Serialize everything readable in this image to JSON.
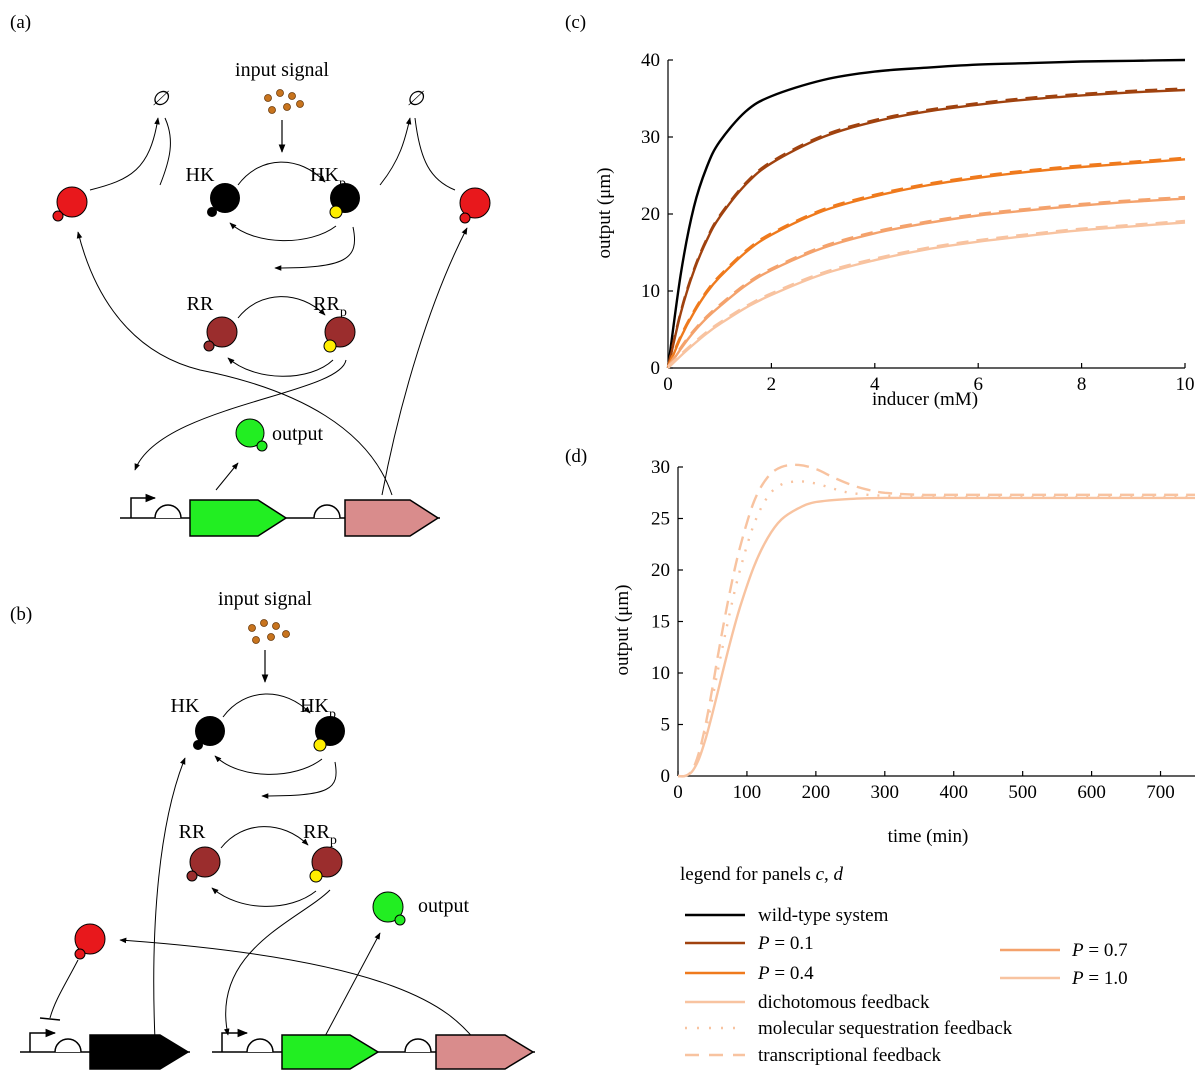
{
  "panel_labels": {
    "a": "(a)",
    "b": "(b)",
    "c": "(c)",
    "d": "(d)"
  },
  "diagram_a": {
    "input": "input signal",
    "empty_left": "∅",
    "empty_right": "∅",
    "hk": "HK",
    "hkp": "HK",
    "p_sub": "p",
    "rr": "RR",
    "rrp": "RR",
    "output": "output"
  },
  "diagram_b": {
    "input": "input signal",
    "hk": "HK",
    "hkp": "HK",
    "p_sub": "p",
    "rr": "RR",
    "rrp": "RR",
    "output": "output"
  },
  "colors": {
    "wild_type": "#000000",
    "p01": "#a0420f",
    "p04": "#ef7a1d",
    "p07": "#f4a26c",
    "p10": "#f8c3a0",
    "red_protein": "#e8181c",
    "hk": "#000000",
    "rr": "#9b2d2d",
    "phospho": "#ffee00",
    "gfp": "#22ee22",
    "pink_gene": "#d98c8c",
    "signal": "#c8741e"
  },
  "chart_data": [
    {
      "type": "line",
      "panel": "c",
      "xlabel": "inducer (mM)",
      "ylabel": "output (μm)",
      "xlim": [
        0,
        10
      ],
      "ylim": [
        0,
        40
      ],
      "xticks": [
        "0",
        "2",
        "4",
        "6",
        "8",
        "10"
      ],
      "yticks": [
        "0",
        "10",
        "20",
        "30",
        "40"
      ],
      "x": [
        0,
        0.25,
        0.5,
        0.75,
        1,
        1.5,
        2,
        3,
        4,
        5,
        6,
        7,
        8,
        9,
        10
      ],
      "series": [
        {
          "name": "wild-type system",
          "color": "#000000",
          "values": [
            0,
            12.3,
            20.9,
            26.1,
            29.4,
            33.3,
            35.3,
            37.4,
            38.5,
            39.0,
            39.4,
            39.6,
            39.8,
            39.9,
            40.0
          ]
        },
        {
          "name": "P = 0.1",
          "color": "#a0420f",
          "values": [
            0,
            7.2,
            12.6,
            16.6,
            19.6,
            23.8,
            26.6,
            30.0,
            32.0,
            33.3,
            34.2,
            34.9,
            35.4,
            35.8,
            36.1
          ]
        },
        {
          "name": "P = 0.4",
          "color": "#ef7a1d",
          "values": [
            0,
            4.0,
            7.2,
            9.8,
            11.8,
            15.0,
            17.3,
            20.4,
            22.3,
            23.7,
            24.7,
            25.5,
            26.1,
            26.6,
            27.1
          ]
        },
        {
          "name": "P = 0.7",
          "color": "#f4a26c",
          "values": [
            0,
            2.5,
            4.7,
            6.5,
            8.0,
            10.7,
            12.7,
            15.6,
            17.5,
            18.8,
            19.8,
            20.5,
            21.1,
            21.6,
            22.0
          ]
        },
        {
          "name": "P = 1.0",
          "color": "#f8c3a0",
          "values": [
            0,
            1.6,
            3.1,
            4.5,
            5.7,
            7.8,
            9.5,
            12.2,
            14.0,
            15.4,
            16.4,
            17.2,
            17.9,
            18.4,
            18.9
          ]
        }
      ]
    },
    {
      "type": "line",
      "panel": "d",
      "xlabel": "time (min)",
      "ylabel": "output (μm)",
      "xlim": [
        0,
        750
      ],
      "ylim": [
        0,
        30
      ],
      "xticks": [
        "0",
        "100",
        "200",
        "300",
        "400",
        "500",
        "600",
        "700"
      ],
      "yticks": [
        "0",
        "5",
        "10",
        "15",
        "20",
        "25",
        "30"
      ],
      "series": [
        {
          "name": "dichotomous feedback",
          "color": "#f8c3a0",
          "style": "solid",
          "x": [
            0,
            10,
            20,
            30,
            40,
            50,
            60,
            75,
            90,
            110,
            130,
            150,
            175,
            200,
            250,
            300,
            400,
            500,
            600,
            750
          ],
          "values": [
            0,
            0.0,
            0.4,
            1.6,
            3.6,
            6.1,
            8.8,
            12.8,
            16.4,
            20.3,
            23.1,
            24.9,
            26.0,
            26.6,
            26.9,
            27.0,
            27.0,
            27.0,
            27.0,
            27.0
          ]
        },
        {
          "name": "molecular sequestration feedback",
          "color": "#f8c3a0",
          "style": "dotted",
          "x": [
            0,
            10,
            20,
            30,
            40,
            50,
            60,
            75,
            90,
            110,
            130,
            150,
            175,
            200,
            225,
            250,
            300,
            400,
            500,
            600,
            750
          ],
          "values": [
            0,
            0.0,
            0.5,
            2.0,
            4.4,
            7.6,
            11.0,
            15.8,
            20.0,
            24.4,
            27.1,
            28.3,
            28.6,
            28.4,
            27.9,
            27.5,
            27.2,
            27.1,
            27.1,
            27.1,
            27.1
          ]
        },
        {
          "name": "transcriptional feedback",
          "color": "#f8c3a0",
          "style": "dashed",
          "x": [
            0,
            10,
            20,
            30,
            40,
            50,
            60,
            75,
            90,
            110,
            130,
            150,
            175,
            200,
            225,
            250,
            275,
            300,
            350,
            400,
            500,
            600,
            750
          ],
          "values": [
            0,
            0.0,
            0.5,
            2.2,
            5.0,
            8.6,
            12.5,
            17.8,
            22.2,
            26.6,
            29.0,
            30.0,
            30.2,
            29.8,
            29.0,
            28.3,
            27.8,
            27.5,
            27.3,
            27.3,
            27.3,
            27.3,
            27.3
          ]
        }
      ]
    }
  ],
  "legend": {
    "title_prefix": "legend for panels ",
    "title_c": "c",
    "title_sep": ", ",
    "title_d": "d",
    "wild_type": "wild-type system",
    "p01_val": "= 0.1",
    "p04_val": "= 0.4",
    "p07_val": "= 0.7",
    "p10_val": "= 1.0",
    "p_symbol": "P",
    "dichotomous": "dichotomous feedback",
    "sequestration": "molecular sequestration feedback",
    "transcriptional": "transcriptional feedback"
  }
}
